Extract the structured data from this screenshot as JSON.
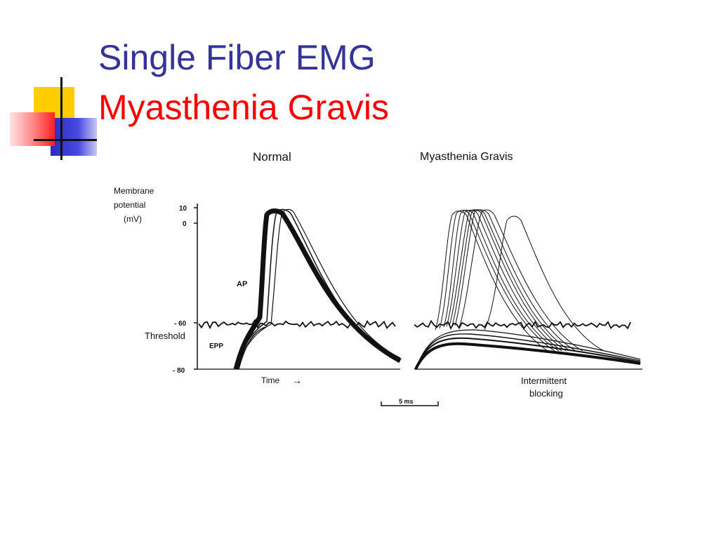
{
  "slide": {
    "title_line1": "Single Fiber EMG",
    "title_line2": "Myasthenia Gravis"
  },
  "colors": {
    "title_blue": "#33339a",
    "title_red": "#ff0000",
    "deco_yellow": "#ffcc00",
    "deco_blue": "#3333cc",
    "deco_red": "#ff3333"
  },
  "figure": {
    "panel_normal_title": "Normal",
    "panel_mg_title": "Myasthenia  Gravis",
    "y_axis_label_line1": "Membrane",
    "y_axis_label_line2": "potential",
    "y_axis_label_line3": "(mV)",
    "y_ticks": [
      "10",
      "0",
      "- 60",
      "- 80"
    ],
    "threshold_label": "Threshold",
    "ap_label": "AP",
    "epp_label": "EPP",
    "time_label": "Time",
    "time_arrow": "→",
    "blocking_line1": "Intermittent",
    "blocking_line2": "blocking",
    "scale_bar_label": "5 ms"
  }
}
